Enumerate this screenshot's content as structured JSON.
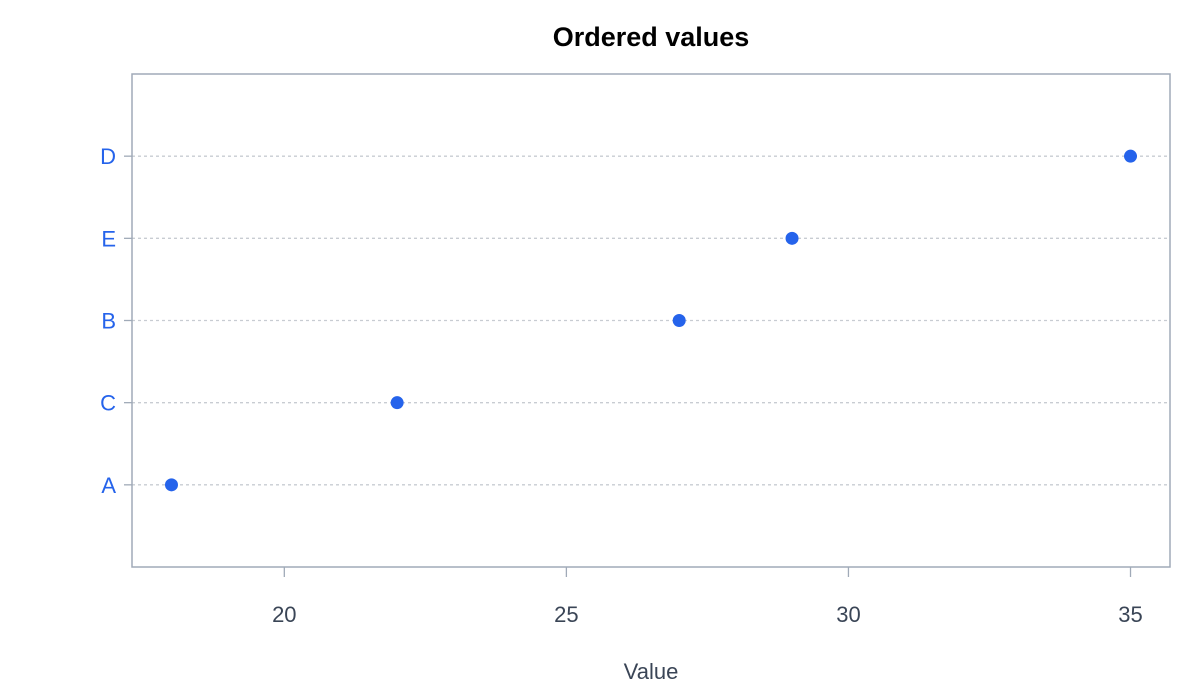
{
  "chart_data": {
    "type": "scatter",
    "title": "Ordered values",
    "xlabel": "Value",
    "ylabel": "",
    "categories": [
      "A",
      "C",
      "B",
      "E",
      "D"
    ],
    "values": [
      18,
      22,
      27,
      29,
      35
    ],
    "xlim": [
      17.3,
      35.7
    ],
    "x_ticks": [
      20,
      25,
      30,
      35
    ],
    "grid": "horizontal-dotted",
    "colors": {
      "point": "#2563eb",
      "category_label": "#2563eb",
      "tick_label": "#3a4556",
      "frame": "#a0aab8",
      "grid": "#c8ccd2"
    }
  }
}
